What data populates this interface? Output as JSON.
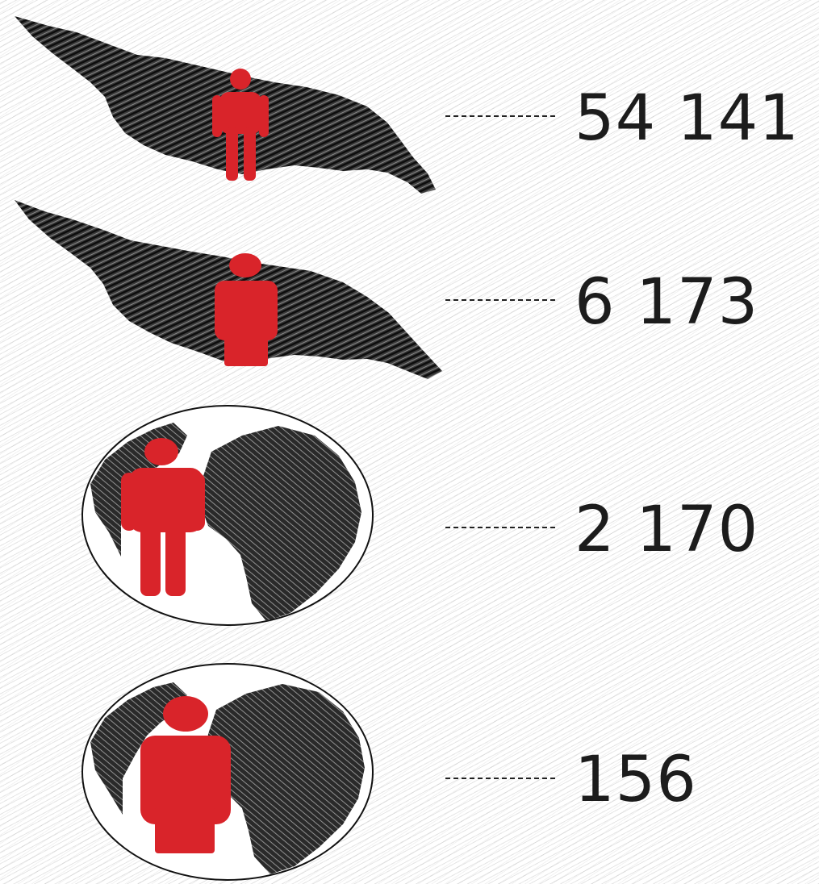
{
  "colors": {
    "person": "#d9242a",
    "ink": "#1c1c1c"
  },
  "rows": [
    {
      "icon": "country-map-icon",
      "person_icon": "person-icon",
      "value": "54 141"
    },
    {
      "icon": "country-map-icon",
      "person_icon": "person-icon",
      "value": "6 173"
    },
    {
      "icon": "globe-icon",
      "person_icon": "person-icon",
      "value": "2 170"
    },
    {
      "icon": "globe-icon",
      "person_icon": "person-icon",
      "value": "156"
    }
  ]
}
